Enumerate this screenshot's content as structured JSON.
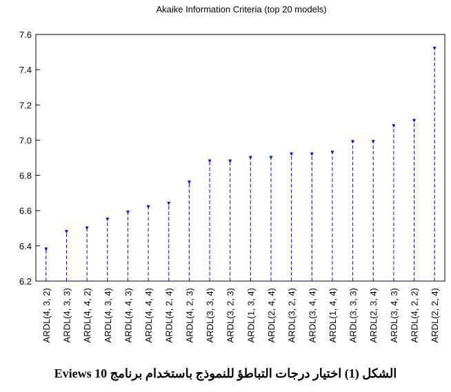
{
  "chart_data": {
    "type": "bar",
    "title": "Akaike Information Criteria (top 20 models)",
    "categories": [
      "ARDL(4, 3, 2)",
      "ARDL(4, 3, 3)",
      "ARDL(4, 4, 2)",
      "ARDL(4, 3, 4)",
      "ARDL(4, 4, 3)",
      "ARDL(4, 4, 4)",
      "ARDL(4, 2, 4)",
      "ARDL(4, 2, 3)",
      "ARDL(3, 3, 4)",
      "ARDL(3, 2, 3)",
      "ARDL(1, 3, 4)",
      "ARDL(2, 4, 4)",
      "ARDL(3, 2, 4)",
      "ARDL(3, 4, 4)",
      "ARDL(1, 4, 4)",
      "ARDL(3, 3, 3)",
      "ARDL(2, 3, 4)",
      "ARDL(3, 4, 3)",
      "ARDL(4, 2, 2)",
      "ARDL(2, 2, 4)"
    ],
    "values": [
      6.39,
      6.49,
      6.51,
      6.56,
      6.6,
      6.63,
      6.65,
      6.77,
      6.89,
      6.89,
      6.91,
      6.91,
      6.93,
      6.93,
      6.94,
      7.0,
      7.0,
      7.09,
      7.12,
      7.53
    ],
    "color": "#0000ff",
    "ylim": [
      6.2,
      7.6
    ],
    "yticks": [
      6.2,
      6.4,
      6.6,
      6.8,
      {
        "value": 7.0,
        "label": "7.0"
      },
      7.2,
      7.4,
      7.6
    ]
  },
  "caption": "الشكل (1) اختيار درجات التباطؤ للنموذج باستخدام برنامج Eviews 10"
}
